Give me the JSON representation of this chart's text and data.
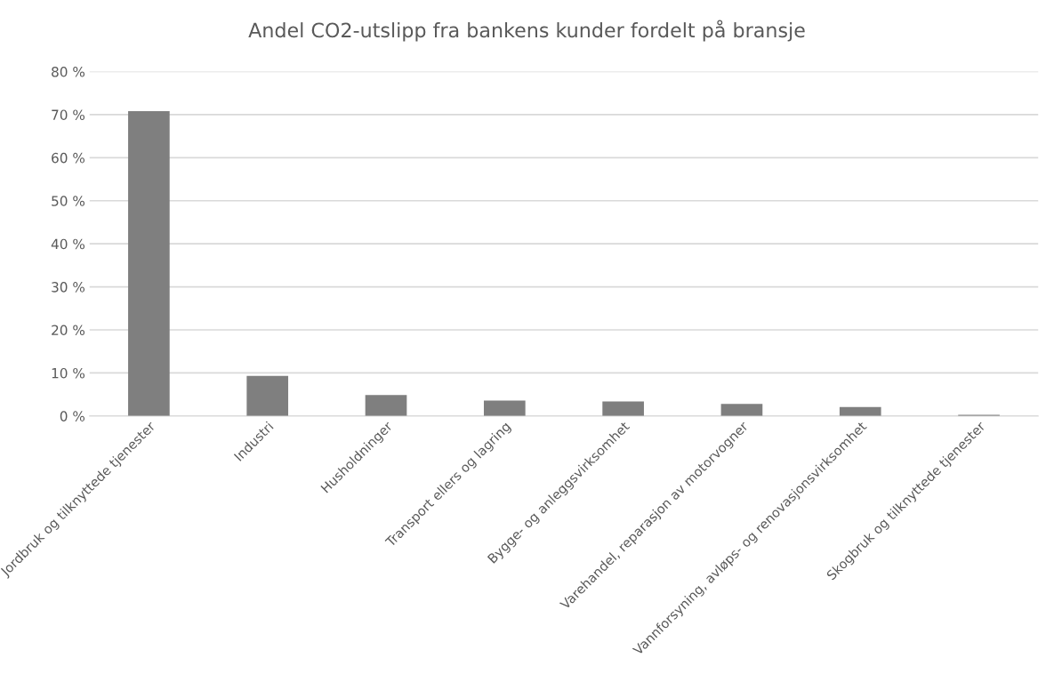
{
  "chart_data": {
    "type": "bar",
    "title": "Andel CO2-utslipp fra bankens kunder fordelt på bransje",
    "categories": [
      "Jordbruk og tilknyttede tjenester",
      "Industri",
      "Husholdninger",
      "Transport ellers og lagring",
      "Bygge- og anleggsvirksomhet",
      "Varehandel, reparasjon av motorvogner",
      "Vannforsyning, avløps- og renovasjonsvirksomhet",
      "Skogbruk og tilknyttede tjenester"
    ],
    "values": [
      70.8,
      9.3,
      4.9,
      3.6,
      3.4,
      2.8,
      2.1,
      0.3
    ],
    "color": "#7f7f7f",
    "ylim": [
      0,
      80
    ],
    "yticks": [
      {
        "value": 0,
        "label": "0 %"
      },
      {
        "value": 10,
        "label": "10 %"
      },
      {
        "value": 20,
        "label": "20 %"
      },
      {
        "value": 30,
        "label": "30 %"
      },
      {
        "value": 40,
        "label": "40 %"
      },
      {
        "value": 50,
        "label": "50 %"
      },
      {
        "value": 60,
        "label": "60 %"
      },
      {
        "value": 70,
        "label": "70 %"
      },
      {
        "value": 80,
        "label": "80 %"
      }
    ],
    "grid": "y"
  }
}
